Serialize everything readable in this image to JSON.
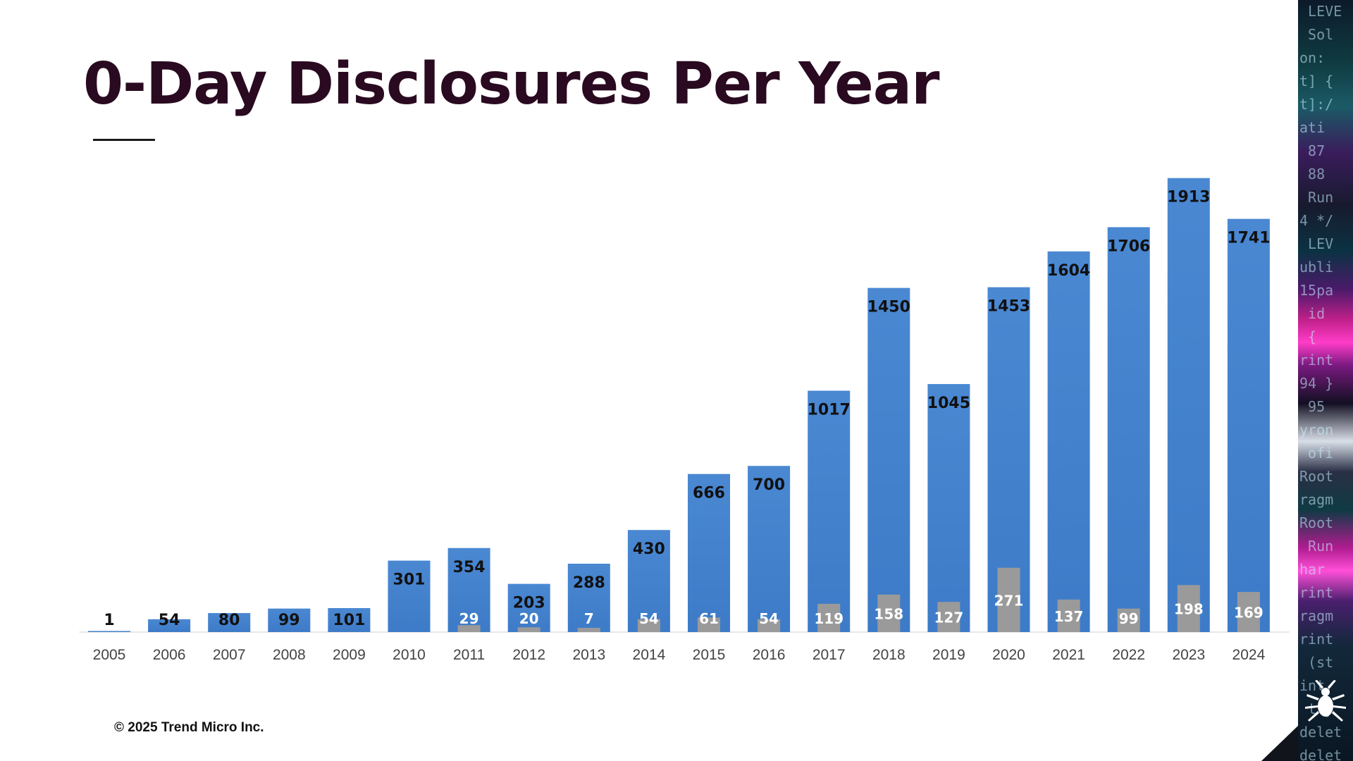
{
  "slide": {
    "title": "0-Day Disclosures Per Year",
    "copyright": "© 2025 Trend Micro Inc."
  },
  "colors": {
    "primary_bar": "#3d7bc8",
    "secondary_bar": "#9a9a9a",
    "title": "#2a0a20"
  },
  "icons": [
    "bug-logo-icon"
  ],
  "chart_data": {
    "type": "bar",
    "title": "0-Day Disclosures Per Year",
    "xlabel": "",
    "ylabel": "",
    "ylim": [
      0,
      2000
    ],
    "grid": false,
    "legend": "none",
    "categories": [
      "2005",
      "2006",
      "2007",
      "2008",
      "2009",
      "2010",
      "2011",
      "2012",
      "2013",
      "2014",
      "2015",
      "2016",
      "2017",
      "2018",
      "2019",
      "2020",
      "2021",
      "2022",
      "2023",
      "2024"
    ],
    "series": [
      {
        "values": [
          1,
          54,
          80,
          99,
          101,
          301,
          354,
          203,
          288,
          430,
          666,
          700,
          1017,
          1450,
          1045,
          1453,
          1604,
          1706,
          1913,
          1741
        ]
      },
      {
        "values": [
          null,
          null,
          null,
          null,
          null,
          null,
          29,
          20,
          7,
          54,
          61,
          54,
          119,
          158,
          127,
          271,
          137,
          99,
          198,
          169
        ]
      }
    ]
  }
}
